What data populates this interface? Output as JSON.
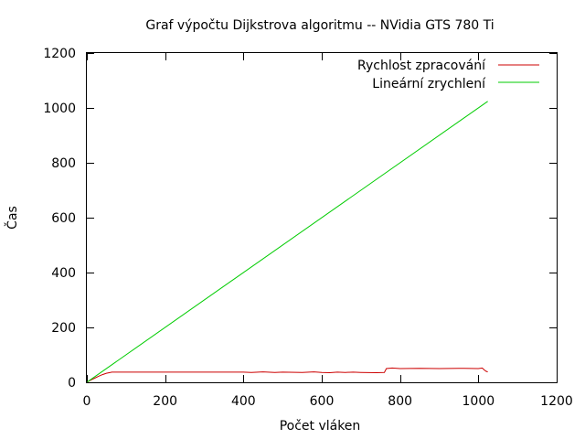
{
  "chart_data": {
    "type": "line",
    "title": "Graf výpočtu Dijkstrova algoritmu -- NVidia GTS 780 Ti",
    "xlabel": "Počet vláken",
    "ylabel": "Čas",
    "xlim": [
      0,
      1200
    ],
    "ylim": [
      0,
      1200
    ],
    "xticks": [
      "0",
      "200",
      "400",
      "600",
      "800",
      "1000",
      "1200"
    ],
    "yticks": [
      "0",
      "200",
      "400",
      "600",
      "800",
      "1000",
      "1200"
    ],
    "grid": false,
    "legend_position": "top-right",
    "series": [
      {
        "name": "Rychlost zpracování",
        "color": "#cc0000",
        "x": [
          1,
          10,
          20,
          30,
          40,
          50,
          60,
          64,
          80,
          100,
          200,
          300,
          400,
          420,
          450,
          480,
          500,
          550,
          580,
          600,
          620,
          640,
          660,
          680,
          700,
          740,
          760,
          765,
          780,
          800,
          850,
          900,
          950,
          1000,
          1010,
          1015,
          1020,
          1024
        ],
        "y": [
          1,
          8,
          15,
          22,
          28,
          33,
          36,
          37,
          37,
          37,
          37,
          37,
          37,
          36,
          38,
          36,
          37,
          36,
          38,
          36,
          35,
          37,
          36,
          37,
          36,
          35,
          36,
          50,
          52,
          50,
          51,
          50,
          51,
          50,
          52,
          45,
          40,
          38
        ]
      },
      {
        "name": "Lineární zrychlení",
        "color": "#00cc00",
        "x": [
          1,
          1024
        ],
        "y": [
          1,
          1024
        ]
      }
    ]
  }
}
